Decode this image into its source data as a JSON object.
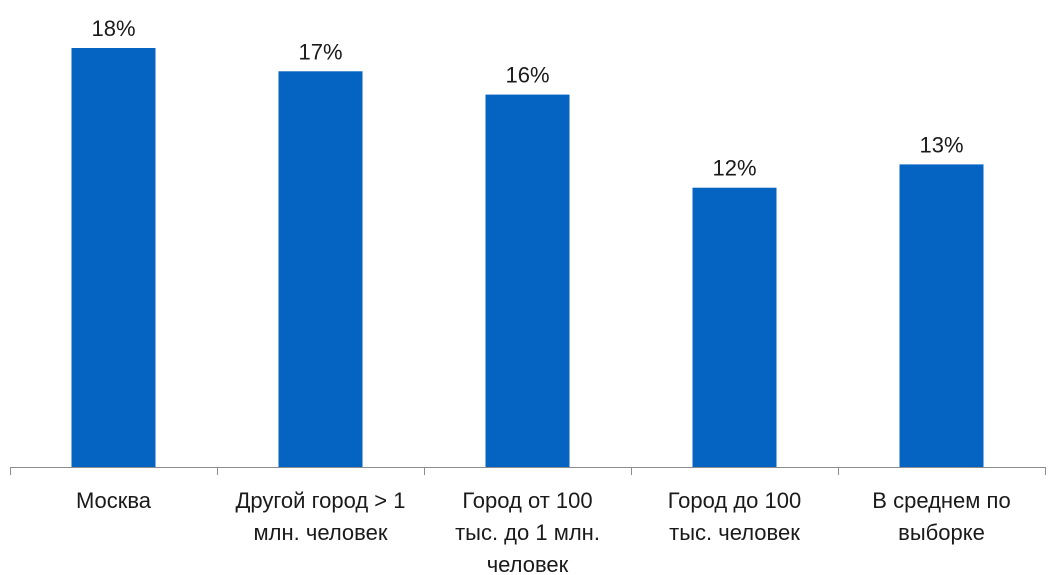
{
  "chart_data": {
    "type": "bar",
    "categories": [
      [
        "Москва"
      ],
      [
        "Другой город > 1",
        "млн. человек"
      ],
      [
        "Город от 100",
        "тыс. до 1 млн.",
        "человек"
      ],
      [
        "Город до 100",
        "тыс. человек"
      ],
      [
        "В среднем по",
        "выборке"
      ]
    ],
    "values": [
      18,
      17,
      16,
      12,
      13
    ],
    "value_labels": [
      "18%",
      "17%",
      "16%",
      "12%",
      "13%"
    ],
    "ylim": [
      0,
      18
    ],
    "grid": false,
    "bar_color": "#0563c1"
  }
}
